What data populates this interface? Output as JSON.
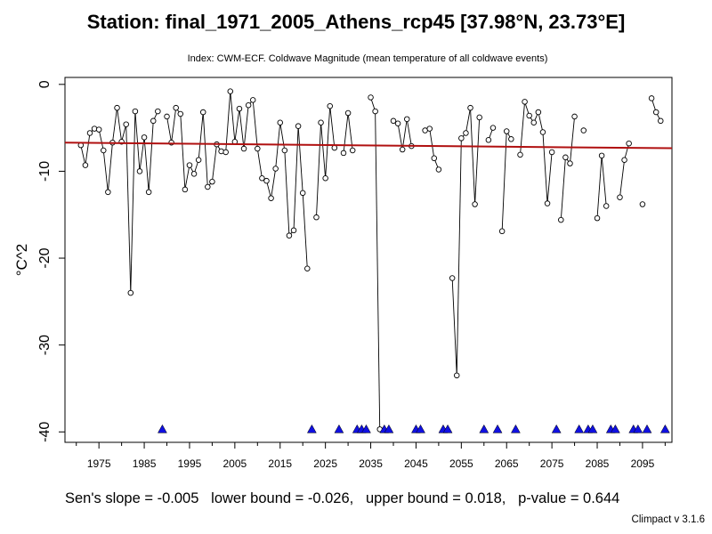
{
  "chart_data": {
    "type": "line",
    "title": "Station: final_1971_2005_Athens_rcp45 [37.98°N, 23.73°E]",
    "subtitle": "Index: CWM-ECF. Coldwave Magnitude (mean temperature of all coldwave events)",
    "xlabel": "",
    "ylabel": "°C^2",
    "xlim": [
      1967.5,
      2101.5
    ],
    "ylim": [
      -41.2,
      0.8
    ],
    "x_ticks": [
      1975,
      1985,
      1995,
      2005,
      2015,
      2025,
      2035,
      2045,
      2055,
      2065,
      2075,
      2085,
      2095
    ],
    "y_ticks": [
      -40,
      -30,
      -20,
      -10,
      0
    ],
    "grid": false,
    "series": [
      {
        "x": [
          1971,
          1972,
          1973,
          1974,
          1975,
          1976,
          1977,
          1978,
          1979,
          1980,
          1981,
          1982,
          1983,
          1984,
          1985,
          1986,
          1987,
          1988,
          1989,
          1990,
          1991,
          1992,
          1993,
          1994,
          1995,
          1996,
          1997,
          1998,
          1999,
          2000,
          2001,
          2002,
          2003,
          2004,
          2005,
          2006,
          2007,
          2008,
          2009,
          2010,
          2011,
          2012,
          2013,
          2014,
          2015,
          2016,
          2017,
          2018,
          2019,
          2020,
          2021,
          2022,
          2023,
          2024,
          2025,
          2026,
          2027,
          2028,
          2029,
          2030,
          2031,
          2032,
          2033,
          2034,
          2035,
          2036,
          2037,
          2038,
          2039,
          2040,
          2041,
          2042,
          2043,
          2044,
          2045,
          2046,
          2047,
          2048,
          2049,
          2050,
          2051,
          2052,
          2053,
          2054,
          2055,
          2056,
          2057,
          2058,
          2059,
          2060,
          2061,
          2062,
          2063,
          2064,
          2065,
          2066,
          2067,
          2068,
          2069,
          2070,
          2071,
          2072,
          2073,
          2074,
          2075,
          2076,
          2077,
          2078,
          2079,
          2080,
          2081,
          2082,
          2083,
          2084,
          2085,
          2086,
          2087,
          2088,
          2089,
          2090,
          2091,
          2092,
          2093,
          2094,
          2095,
          2096,
          2097,
          2098,
          2099,
          2100
        ],
        "values": [
          -7.0,
          -9.3,
          -5.6,
          -5.1,
          -5.2,
          -7.6,
          -12.4,
          -6.7,
          -2.7,
          -6.6,
          -4.6,
          -24.0,
          -3.1,
          -10.0,
          -6.1,
          -12.4,
          -4.2,
          -3.1,
          null,
          -3.7,
          -6.7,
          -2.7,
          -3.4,
          -12.1,
          -9.3,
          -10.3,
          -8.7,
          -3.2,
          -11.8,
          -11.2,
          -6.9,
          -7.7,
          -7.8,
          -0.8,
          -6.6,
          -2.8,
          -7.4,
          -2.4,
          -1.8,
          -7.4,
          -10.8,
          -11.1,
          -13.1,
          -9.7,
          -4.4,
          -7.6,
          -17.4,
          -16.8,
          -4.8,
          -12.5,
          -21.2,
          null,
          -15.3,
          -4.4,
          -10.8,
          -2.5,
          -7.3,
          null,
          -7.9,
          -3.3,
          -7.6,
          null,
          null,
          null,
          -1.5,
          -3.1,
          -39.7,
          null,
          null,
          -4.2,
          -4.5,
          -7.5,
          -4.0,
          -7.1,
          null,
          null,
          -5.3,
          -5.1,
          -8.5,
          -9.8,
          null,
          null,
          -22.3,
          -33.5,
          -6.2,
          -5.6,
          -2.7,
          -13.8,
          -3.8,
          null,
          -6.4,
          -5.0,
          null,
          -16.9,
          -5.4,
          -6.3,
          null,
          -8.1,
          -2.0,
          -3.6,
          -4.4,
          -3.2,
          -5.5,
          -13.7,
          -7.8,
          null,
          -15.6,
          -8.4,
          -9.1,
          -3.7,
          null,
          -5.3,
          null,
          null,
          -15.4,
          -8.2,
          -14.0,
          null,
          null,
          -13.0,
          -8.7,
          -6.8,
          null,
          null,
          -13.8,
          null,
          -1.6,
          -3.2,
          -4.2,
          null
        ]
      }
    ],
    "missing_marker_y": -39.7,
    "trend_line": {
      "x": [
        1967.5,
        2101.5
      ],
      "y": [
        -6.7,
        -7.35
      ],
      "color": "#b01010"
    },
    "line_color": "#000000",
    "marker_color": "#1010e0"
  },
  "stats": {
    "sens_slope": "Sen's slope = -0.005",
    "lower_bound": "lower bound = -0.026,",
    "upper_bound": "upper bound = 0.018,",
    "p_value": "p-value = 0.644"
  },
  "version": "Climpact v 3.1.6"
}
